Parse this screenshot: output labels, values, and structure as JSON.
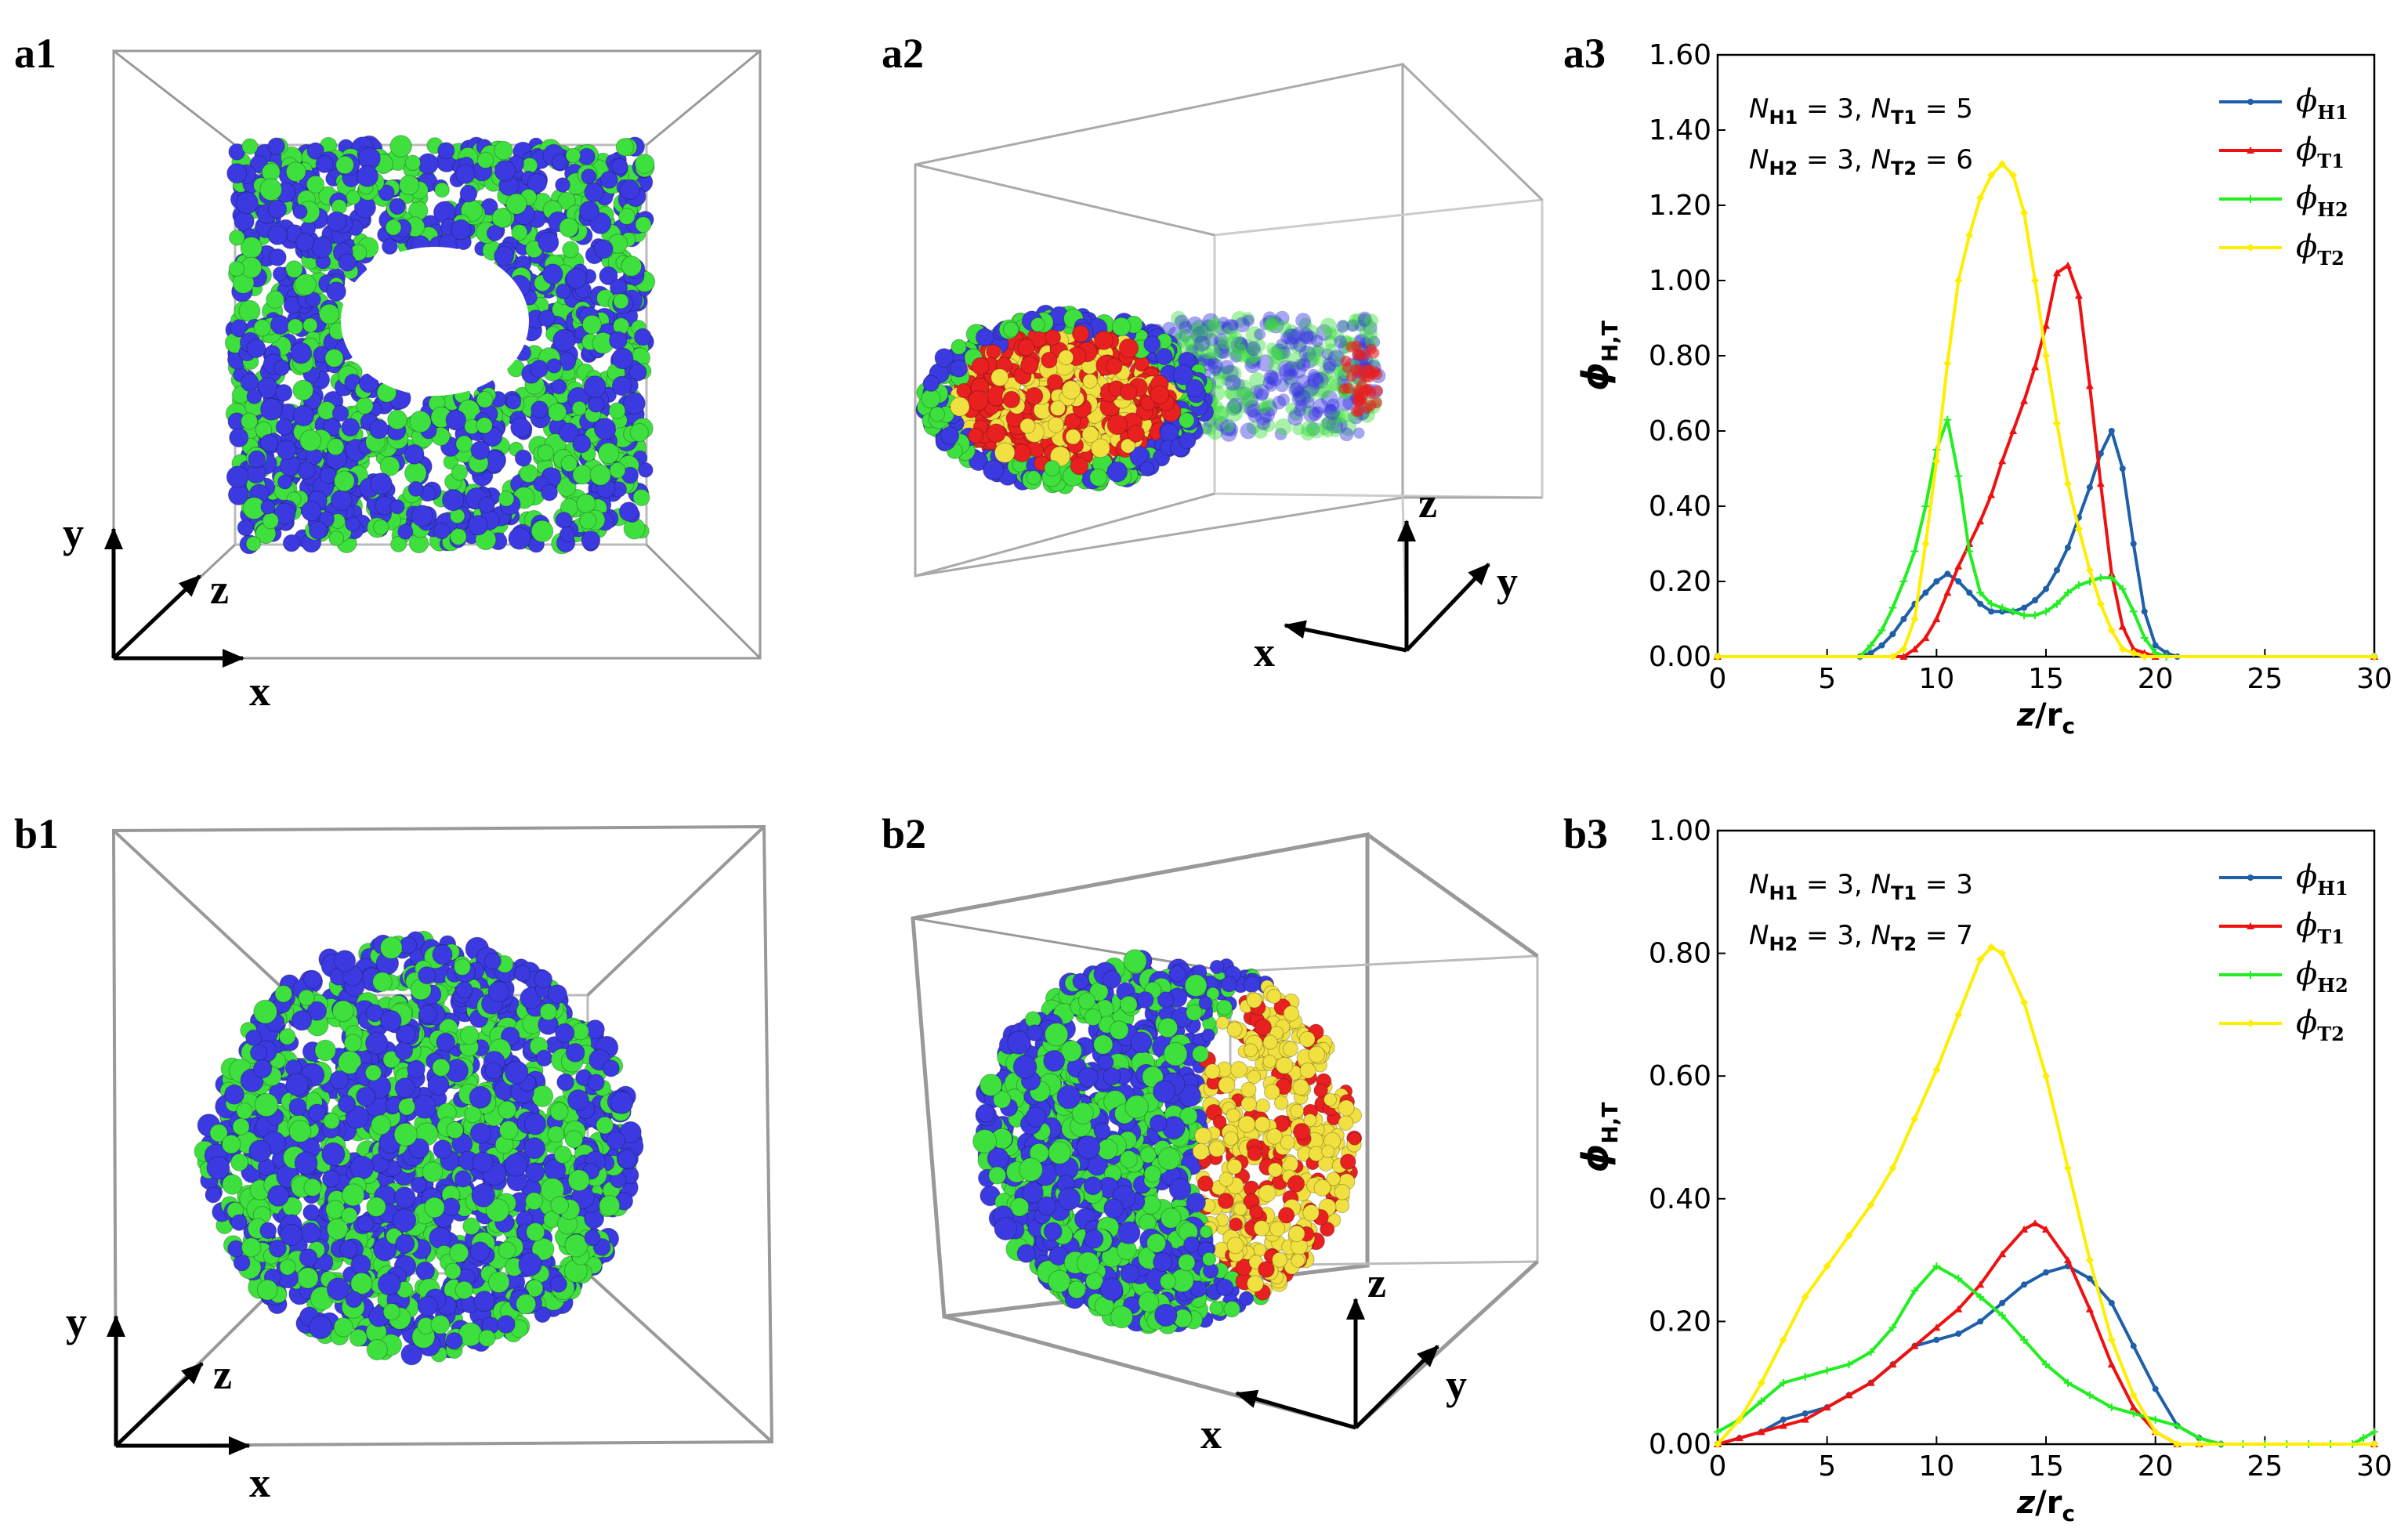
{
  "panels": {
    "a1": {
      "label": "a1",
      "axes": {
        "y": "y",
        "z": "z",
        "x": "x"
      }
    },
    "a2": {
      "label": "a2",
      "axes": {
        "z": "z",
        "y": "y",
        "x": "x"
      }
    },
    "b1": {
      "label": "b1",
      "axes": {
        "y": "y",
        "z": "z",
        "x": "x"
      }
    },
    "b2": {
      "label": "b2",
      "axes": {
        "z": "z",
        "y": "y",
        "x": "x"
      }
    },
    "a3": {
      "label": "a3"
    },
    "b3": {
      "label": "b3"
    }
  },
  "colors": {
    "H1": "#1f5fa8",
    "T1": "#ee1111",
    "H2": "#22ee22",
    "T2": "#ffee00",
    "bead_blue": "#3a3ae0",
    "bead_green": "#3ee03e",
    "bead_red": "#e82020",
    "bead_yellow": "#f0e040"
  },
  "chart_data": [
    {
      "type": "line",
      "id": "a3",
      "xlabel": "z/r",
      "xlabel_sub": "c",
      "ylabel": "ϕ",
      "ylabel_sub": "H,T",
      "xlim": [
        0,
        30
      ],
      "ylim": [
        0,
        1.6
      ],
      "xticks": [
        "0",
        "5",
        "10",
        "15",
        "20",
        "25",
        "30"
      ],
      "yticks": [
        "0.00",
        "0.20",
        "0.40",
        "0.60",
        "0.80",
        "1.00",
        "1.20",
        "1.40",
        "1.60"
      ],
      "annotation": [
        {
          "n1": "N",
          "s1": "H1",
          "eq1": " = 3, ",
          "n2": "N",
          "s2": "T1",
          "eq2": " = 5"
        },
        {
          "n1": "N",
          "s1": "H2",
          "eq1": " = 3, ",
          "n2": "N",
          "s2": "T2",
          "eq2": " = 6"
        }
      ],
      "legend": [
        {
          "sym": "ϕ",
          "sub": "H1"
        },
        {
          "sym": "ϕ",
          "sub": "T1"
        },
        {
          "sym": "ϕ",
          "sub": "H2"
        },
        {
          "sym": "ϕ",
          "sub": "T2"
        }
      ],
      "series": [
        {
          "name": "H1",
          "color": "#1f5fa8",
          "marker": "circle",
          "x": [
            0,
            6.5,
            7,
            7.5,
            8,
            8.5,
            9,
            9.5,
            10,
            10.5,
            11,
            11.5,
            12,
            12.5,
            13,
            13.5,
            14,
            14.5,
            15,
            15.5,
            16,
            16.5,
            17,
            17.5,
            18,
            18.5,
            19,
            19.5,
            20,
            20.5,
            21,
            30
          ],
          "y": [
            0,
            0,
            0.01,
            0.03,
            0.06,
            0.1,
            0.14,
            0.17,
            0.2,
            0.22,
            0.2,
            0.17,
            0.14,
            0.12,
            0.12,
            0.12,
            0.13,
            0.15,
            0.18,
            0.23,
            0.29,
            0.37,
            0.45,
            0.54,
            0.6,
            0.5,
            0.3,
            0.12,
            0.03,
            0.01,
            0,
            0
          ]
        },
        {
          "name": "T1",
          "color": "#ee1111",
          "marker": "triangle",
          "x": [
            0,
            8.5,
            9,
            9.5,
            10,
            10.5,
            11,
            11.5,
            12,
            12.5,
            13,
            13.5,
            14,
            14.5,
            15,
            15.5,
            16,
            16.5,
            17,
            17.5,
            18,
            18.5,
            19,
            19.5,
            20,
            30
          ],
          "y": [
            0,
            0,
            0.02,
            0.05,
            0.1,
            0.17,
            0.24,
            0.3,
            0.36,
            0.43,
            0.52,
            0.6,
            0.68,
            0.77,
            0.88,
            1.02,
            1.04,
            0.96,
            0.72,
            0.46,
            0.22,
            0.08,
            0.02,
            0.01,
            0,
            0
          ]
        },
        {
          "name": "H2",
          "color": "#22ee22",
          "marker": "plus",
          "x": [
            0,
            6.5,
            7,
            7.5,
            8,
            8.5,
            9,
            9.5,
            10,
            10.5,
            11,
            11.5,
            12,
            12.5,
            13,
            13.5,
            14,
            14.5,
            15,
            15.5,
            16,
            16.5,
            17,
            17.5,
            18,
            18.5,
            19,
            19.5,
            20,
            20.5,
            30
          ],
          "y": [
            0,
            0,
            0.03,
            0.07,
            0.13,
            0.2,
            0.28,
            0.4,
            0.55,
            0.63,
            0.48,
            0.28,
            0.17,
            0.14,
            0.13,
            0.12,
            0.11,
            0.11,
            0.12,
            0.14,
            0.17,
            0.19,
            0.2,
            0.21,
            0.21,
            0.18,
            0.12,
            0.05,
            0.01,
            0,
            0
          ]
        },
        {
          "name": "T2",
          "color": "#ffee00",
          "marker": "diamond",
          "x": [
            0,
            8,
            8.5,
            9,
            9.5,
            10,
            10.5,
            11,
            11.5,
            12,
            12.5,
            13,
            13.5,
            14,
            14.5,
            15,
            15.5,
            16,
            16.5,
            17,
            17.5,
            18,
            18.5,
            19,
            19.5,
            30
          ],
          "y": [
            0,
            0,
            0.02,
            0.1,
            0.3,
            0.52,
            0.78,
            1.0,
            1.12,
            1.22,
            1.28,
            1.31,
            1.28,
            1.18,
            1.0,
            0.8,
            0.62,
            0.46,
            0.34,
            0.23,
            0.14,
            0.07,
            0.02,
            0.01,
            0,
            0
          ]
        }
      ]
    },
    {
      "type": "line",
      "id": "b3",
      "xlabel": "z/r",
      "xlabel_sub": "c",
      "ylabel": "ϕ",
      "ylabel_sub": "H,T",
      "xlim": [
        0,
        30
      ],
      "ylim": [
        0,
        1.0
      ],
      "xticks": [
        "0",
        "5",
        "10",
        "15",
        "20",
        "25",
        "30"
      ],
      "yticks": [
        "0.00",
        "0.20",
        "0.40",
        "0.60",
        "0.80",
        "1.00"
      ],
      "annotation": [
        {
          "n1": "N",
          "s1": "H1",
          "eq1": " = 3, ",
          "n2": "N",
          "s2": "T1",
          "eq2": " = 3"
        },
        {
          "n1": "N",
          "s1": "H2",
          "eq1": " = 3, ",
          "n2": "N",
          "s2": "T2",
          "eq2": " = 7"
        }
      ],
      "legend": [
        {
          "sym": "ϕ",
          "sub": "H1"
        },
        {
          "sym": "ϕ",
          "sub": "T1"
        },
        {
          "sym": "ϕ",
          "sub": "H2"
        },
        {
          "sym": "ϕ",
          "sub": "T2"
        }
      ],
      "series": [
        {
          "name": "H1",
          "color": "#1f5fa8",
          "marker": "circle",
          "x": [
            0,
            1,
            2,
            3,
            4,
            5,
            6,
            7,
            8,
            9,
            10,
            11,
            12,
            13,
            14,
            15,
            16,
            17,
            18,
            19,
            20,
            21,
            22,
            23,
            30
          ],
          "y": [
            0,
            0.01,
            0.02,
            0.04,
            0.05,
            0.06,
            0.08,
            0.1,
            0.13,
            0.16,
            0.17,
            0.18,
            0.2,
            0.23,
            0.26,
            0.28,
            0.29,
            0.27,
            0.23,
            0.16,
            0.09,
            0.03,
            0.01,
            0,
            0
          ]
        },
        {
          "name": "T1",
          "color": "#ee1111",
          "marker": "triangle",
          "x": [
            0,
            1,
            2,
            3,
            4,
            5,
            6,
            7,
            8,
            9,
            10,
            11,
            12,
            13,
            14,
            14.5,
            15,
            16,
            17,
            18,
            19,
            20,
            21,
            22,
            30
          ],
          "y": [
            0,
            0.01,
            0.02,
            0.03,
            0.04,
            0.06,
            0.08,
            0.1,
            0.13,
            0.16,
            0.19,
            0.22,
            0.26,
            0.31,
            0.35,
            0.36,
            0.35,
            0.3,
            0.22,
            0.13,
            0.06,
            0.02,
            0,
            0,
            0
          ]
        },
        {
          "name": "H2",
          "color": "#22ee22",
          "marker": "plus",
          "x": [
            0,
            1,
            2,
            3,
            4,
            5,
            6,
            7,
            8,
            9,
            10,
            11,
            12,
            13,
            14,
            15,
            16,
            17,
            18,
            19,
            20,
            21,
            22,
            23,
            24,
            25,
            26,
            27,
            28,
            29,
            29.5,
            30
          ],
          "y": [
            0.02,
            0.04,
            0.07,
            0.1,
            0.11,
            0.12,
            0.13,
            0.15,
            0.19,
            0.25,
            0.29,
            0.27,
            0.24,
            0.21,
            0.17,
            0.13,
            0.1,
            0.08,
            0.06,
            0.05,
            0.04,
            0.03,
            0.01,
            0,
            0,
            0,
            0,
            0,
            0,
            0,
            0.01,
            0.02
          ]
        },
        {
          "name": "T2",
          "color": "#ffee00",
          "marker": "diamond",
          "x": [
            0,
            1,
            2,
            3,
            4,
            5,
            6,
            7,
            8,
            9,
            10,
            11,
            12,
            12.5,
            13,
            14,
            15,
            16,
            17,
            18,
            19,
            20,
            21,
            22,
            30
          ],
          "y": [
            0,
            0.04,
            0.1,
            0.17,
            0.24,
            0.29,
            0.34,
            0.39,
            0.45,
            0.53,
            0.61,
            0.7,
            0.79,
            0.81,
            0.8,
            0.72,
            0.6,
            0.45,
            0.3,
            0.17,
            0.08,
            0.02,
            0,
            0,
            0
          ]
        }
      ]
    }
  ]
}
